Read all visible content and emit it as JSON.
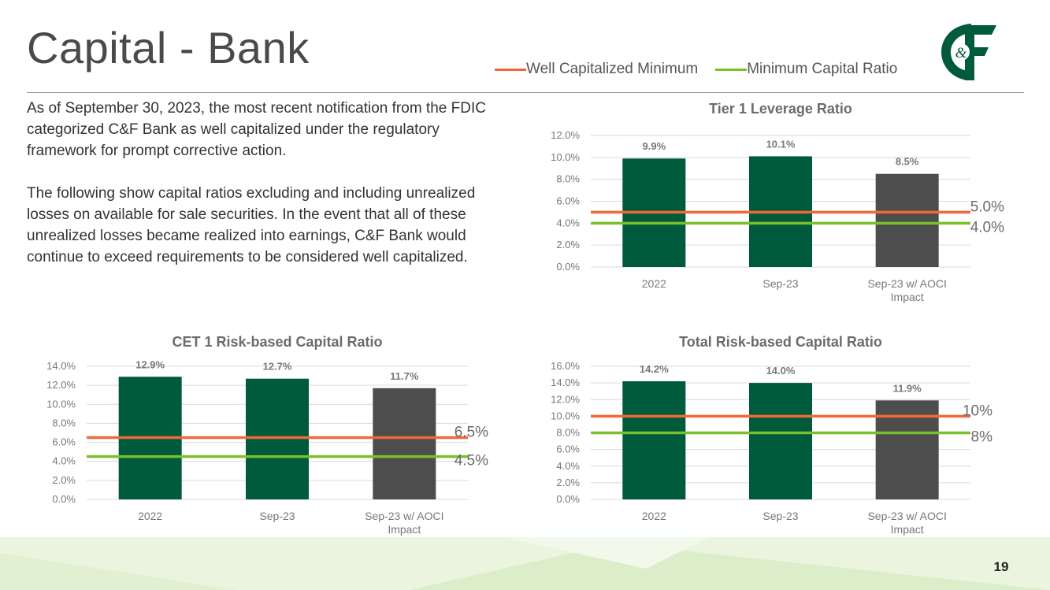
{
  "slide": {
    "title": "Capital - Bank",
    "page_number": "19",
    "logo_text": "C&F"
  },
  "legend": {
    "items": [
      {
        "label": "Well Capitalized Minimum",
        "color": "#f0693c"
      },
      {
        "label": "Minimum Capital Ratio",
        "color": "#7bbf2a"
      }
    ]
  },
  "body": {
    "paragraph1": "As of September 30, 2023, the most recent notification from the FDIC categorized C&F Bank as well capitalized under the regulatory framework for prompt corrective action.",
    "paragraph2": "The following show capital ratios excluding and including unrealized losses on available for sale securities. In the event that all of these unrealized losses became realized into earnings, C&F Bank would continue to exceed requirements to be considered well capitalized."
  },
  "colors": {
    "bar_green": "#005a3c",
    "bar_gray": "#4d4d4d",
    "well_capitalized_line": "#f0693c",
    "minimum_line": "#7bbf2a",
    "gridline": "#d9d9d9",
    "footer_green": "#e8f3dc"
  },
  "chart_data": [
    {
      "id": "tier1",
      "type": "bar",
      "title": "Tier 1 Leverage Ratio",
      "categories": [
        "2022",
        "Sep-23",
        "Sep-23 w/ AOCI Impact"
      ],
      "values": [
        9.9,
        10.1,
        8.5
      ],
      "value_labels": [
        "9.9%",
        "10.1%",
        "8.5%"
      ],
      "yticks": [
        "12.0%",
        "10.0%",
        "8.0%",
        "6.0%",
        "4.0%",
        "2.0%",
        "0.0%"
      ],
      "ylim": [
        0,
        12
      ],
      "reference_lines": [
        {
          "name": "Well Capitalized Minimum",
          "value": 5.0,
          "label": "5.0%"
        },
        {
          "name": "Minimum Capital Ratio",
          "value": 4.0,
          "label": "4.0%"
        }
      ]
    },
    {
      "id": "cet1",
      "type": "bar",
      "title": "CET 1 Risk-based Capital Ratio",
      "categories": [
        "2022",
        "Sep-23",
        "Sep-23 w/ AOCI Impact"
      ],
      "values": [
        12.9,
        12.7,
        11.7
      ],
      "value_labels": [
        "12.9%",
        "12.7%",
        "11.7%"
      ],
      "yticks": [
        "14.0%",
        "12.0%",
        "10.0%",
        "8.0%",
        "6.0%",
        "4.0%",
        "2.0%",
        "0.0%"
      ],
      "ylim": [
        0,
        14
      ],
      "reference_lines": [
        {
          "name": "Well Capitalized Minimum",
          "value": 6.5,
          "label": "6.5%"
        },
        {
          "name": "Minimum Capital Ratio",
          "value": 4.5,
          "label": "4.5%"
        }
      ]
    },
    {
      "id": "total",
      "type": "bar",
      "title": "Total Risk-based Capital Ratio",
      "categories": [
        "2022",
        "Sep-23",
        "Sep-23 w/ AOCI Impact"
      ],
      "values": [
        14.2,
        14.0,
        11.9
      ],
      "value_labels": [
        "14.2%",
        "14.0%",
        "11.9%"
      ],
      "yticks": [
        "16.0%",
        "14.0%",
        "12.0%",
        "10.0%",
        "8.0%",
        "6.0%",
        "4.0%",
        "2.0%",
        "0.0%"
      ],
      "ylim": [
        0,
        16
      ],
      "reference_lines": [
        {
          "name": "Well Capitalized Minimum",
          "value": 10,
          "label": "10%"
        },
        {
          "name": "Minimum Capital Ratio",
          "value": 8,
          "label": "8%"
        }
      ]
    }
  ]
}
